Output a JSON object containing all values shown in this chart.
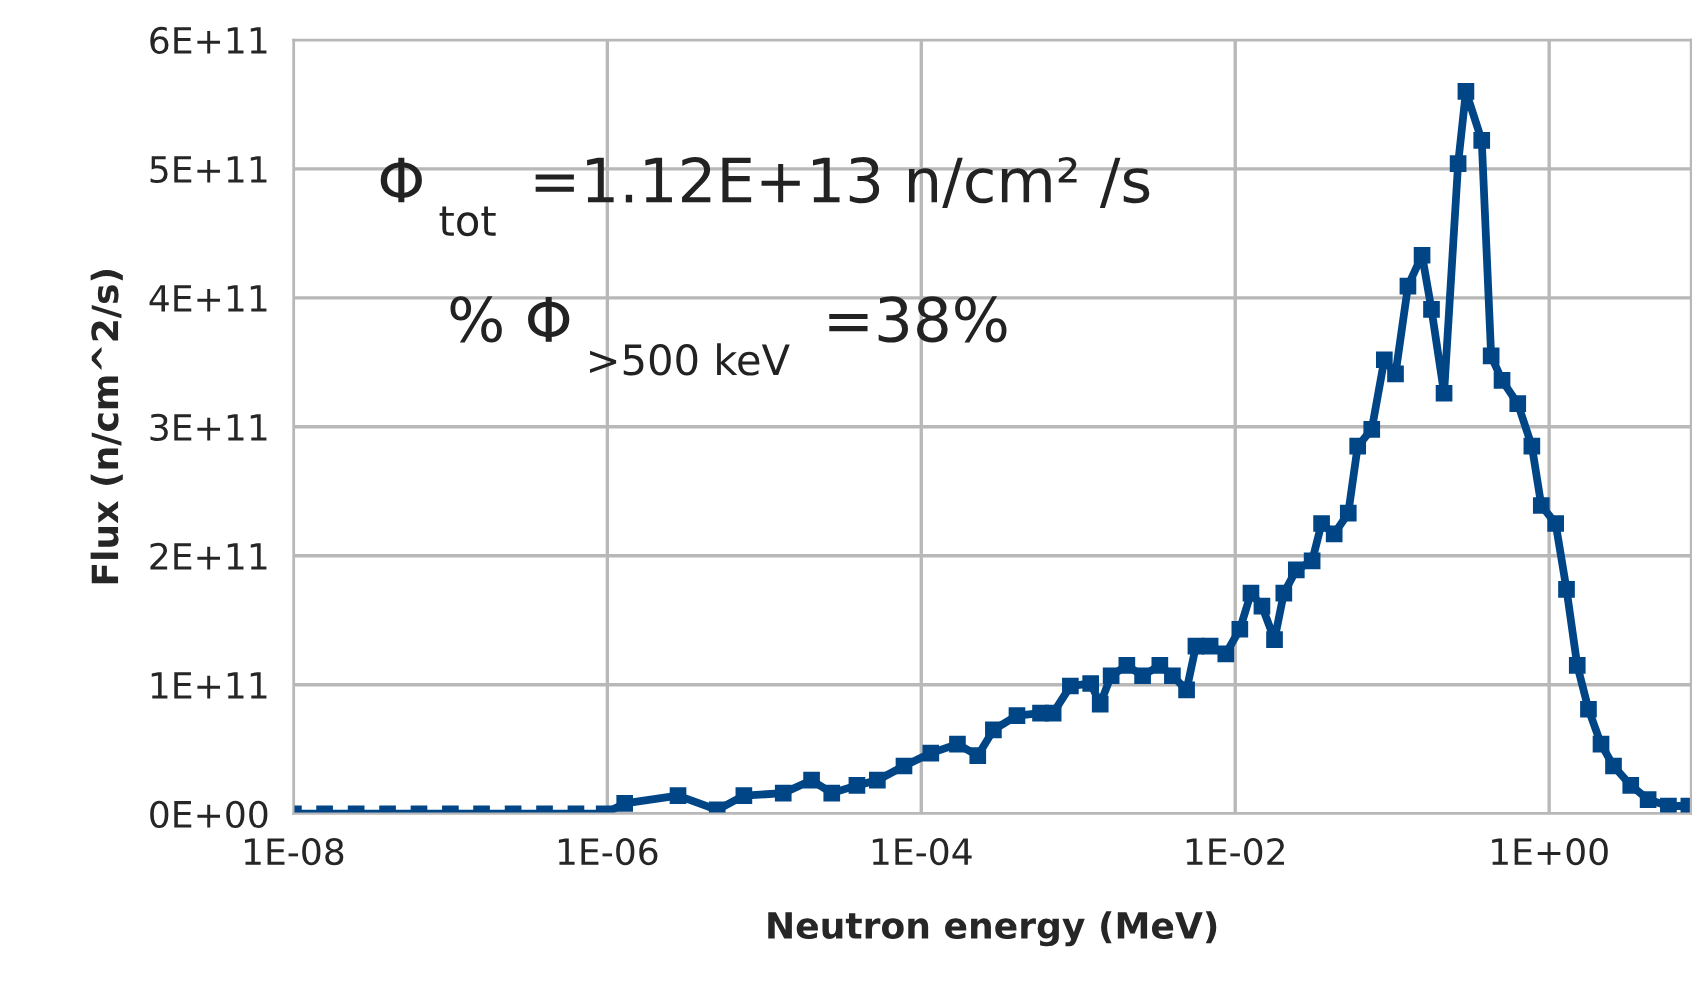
{
  "chart_data": {
    "type": "line",
    "xlabel": "Neutron energy (MeV)",
    "ylabel": "Flux (n/cm^2/s)",
    "annotations": [
      "Φ$_{tot}$ =1.12E+13 n/cm² /s",
      "% Φ$_{>500 keV}$ =38%"
    ],
    "log": "x",
    "grid": true,
    "marker": "square",
    "line_style": "solid",
    "xlim": [
      1e-08,
      8
    ],
    "xticks": [
      {
        "value": 1e-08,
        "label": "1E-08"
      },
      {
        "value": 1e-06,
        "label": "1E-06"
      },
      {
        "value": 0.0001,
        "label": "1E-04"
      },
      {
        "value": 0.01,
        "label": "1E-02"
      },
      {
        "value": 1,
        "label": "1E+00"
      }
    ],
    "ylim": [
      0,
      600000000000.0
    ],
    "yticks": [
      {
        "value": 0,
        "label": "0E+00"
      },
      {
        "value": 100000000000.0,
        "label": "1E+11"
      },
      {
        "value": 200000000000.0,
        "label": "2E+11"
      },
      {
        "value": 300000000000.0,
        "label": "3E+11"
      },
      {
        "value": 400000000000.0,
        "label": "4E+11"
      },
      {
        "value": 500000000000.0,
        "label": "5E+11"
      },
      {
        "value": 600000000000.0,
        "label": "6E+11"
      }
    ],
    "x": [
      1e-08,
      1.58e-08,
      2.51e-08,
      3.98e-08,
      6.31e-08,
      1e-07,
      1.58e-07,
      2.51e-07,
      3.98e-07,
      6.31e-07,
      9.55e-07,
      1.29e-06,
      2.82e-06,
      5.01e-06,
      7.41e-06,
      1.32e-05,
      2e-05,
      2.69e-05,
      3.89e-05,
      5.25e-05,
      7.76e-05,
      0.000115,
      0.00017,
      0.000229,
      0.000288,
      0.000407,
      0.000575,
      0.000692,
      0.000891,
      0.0012,
      0.00138,
      0.00162,
      0.00204,
      0.00257,
      0.00331,
      0.00398,
      0.0049,
      0.00562,
      0.00692,
      0.00871,
      0.0107,
      0.0126,
      0.0148,
      0.0178,
      0.0204,
      0.0245,
      0.0309,
      0.0355,
      0.0427,
      0.0525,
      0.0603,
      0.0741,
      0.0891,
      0.105,
      0.126,
      0.155,
      0.178,
      0.214,
      0.263,
      0.295,
      0.372,
      0.427,
      0.501,
      0.631,
      0.776,
      0.891,
      1.1,
      1.29,
      1.51,
      1.78,
      2.14,
      2.57,
      3.31,
      4.27,
      5.75,
      7.76
    ],
    "series": [
      {
        "color": "#004586",
        "values": [
          0,
          0,
          0,
          0,
          0,
          0,
          0,
          0,
          0,
          0,
          0,
          8000000000.0,
          14000000000.0,
          3000000000.0,
          14000000000.0,
          16000000000.0,
          26000000000.0,
          16000000000.0,
          22000000000.0,
          26000000000.0,
          37000000000.0,
          47000000000.0,
          54000000000.0,
          45000000000.0,
          65000000000.0,
          76000000000.0,
          78000000000.0,
          78000000000.0,
          99000000000.0,
          101000000000.0,
          85000000000.0,
          107000000000.0,
          115000000000.0,
          107000000000.0,
          115000000000.0,
          107000000000.0,
          96000000000.0,
          130000000000.0,
          130000000000.0,
          124000000000.0,
          143000000000.0,
          171000000000.0,
          161000000000.0,
          135000000000.0,
          171000000000.0,
          189000000000.0,
          196000000000.0,
          225000000000.0,
          217000000000.0,
          233000000000.0,
          285000000000.0,
          298000000000.0,
          352000000000.0,
          341000000000.0,
          409000000000.0,
          433000000000.0,
          391000000000.0,
          326000000000.0,
          504000000000.0,
          560000000000.0,
          522000000000.0,
          355000000000.0,
          336000000000.0,
          318000000000.0,
          285000000000.0,
          239000000000.0,
          225000000000.0,
          174000000000.0,
          115000000000.0,
          81000000000.0,
          54000000000.0,
          37000000000.0,
          22000000000.0,
          11000000000.0,
          6000000000.0,
          6000000000.0
        ]
      }
    ]
  }
}
